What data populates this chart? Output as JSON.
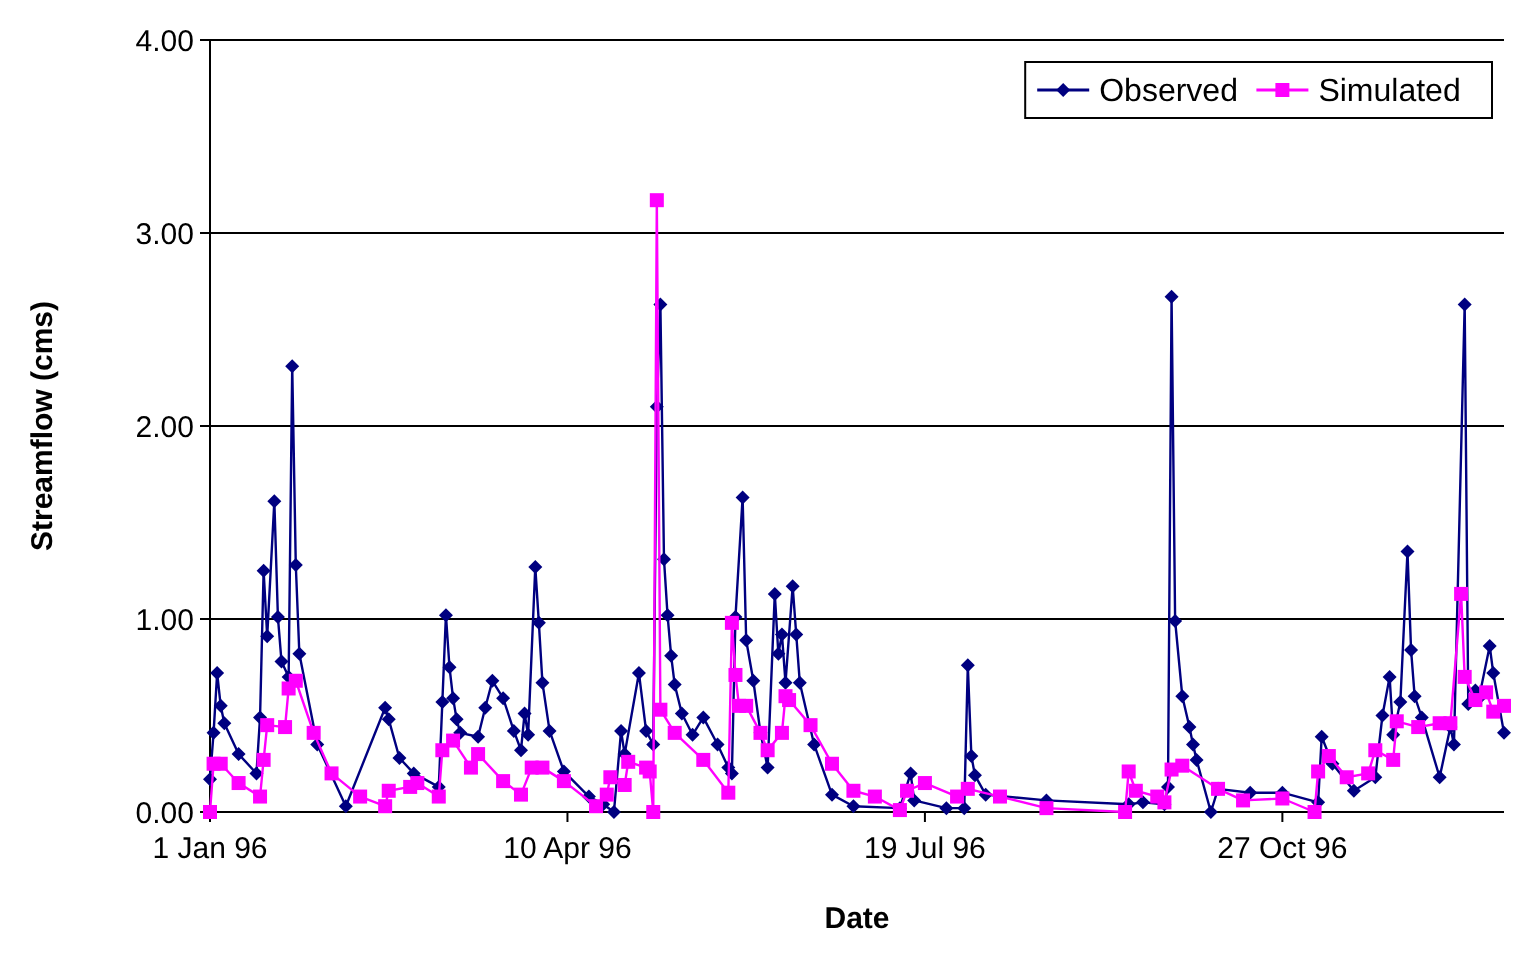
{
  "chart_data": {
    "type": "line",
    "xlabel": "Date",
    "ylabel": "Streamflow (cms)",
    "xlim": [
      "1996-01-01",
      "1996-12-28"
    ],
    "ylim": [
      0,
      4
    ],
    "xticks": [
      {
        "value": "1996-01-01",
        "label": "1 Jan 96"
      },
      {
        "value": "1996-04-10",
        "label": "10 Apr 96"
      },
      {
        "value": "1996-07-19",
        "label": "19 Jul 96"
      },
      {
        "value": "1996-10-27",
        "label": "27 Oct 96"
      }
    ],
    "yticks": [
      {
        "value": 0,
        "label": "0.00"
      },
      {
        "value": 1,
        "label": "1.00"
      },
      {
        "value": 2,
        "label": "2.00"
      },
      {
        "value": 3,
        "label": "3.00"
      },
      {
        "value": 4,
        "label": "4.00"
      }
    ],
    "grid": "y",
    "legend": "top right",
    "series": [
      {
        "name": "Observed",
        "color": "#000080",
        "marker": "diamond",
        "x": [
          "1996-01-01",
          "1996-01-02",
          "1996-01-03",
          "1996-01-04",
          "1996-01-05",
          "1996-01-09",
          "1996-01-14",
          "1996-01-15",
          "1996-01-16",
          "1996-01-17",
          "1996-01-19",
          "1996-01-20",
          "1996-01-21",
          "1996-01-23",
          "1996-01-24",
          "1996-01-25",
          "1996-01-26",
          "1996-01-31",
          "1996-02-08",
          "1996-02-19",
          "1996-02-20",
          "1996-02-23",
          "1996-02-27",
          "1996-03-05",
          "1996-03-06",
          "1996-03-07",
          "1996-03-08",
          "1996-03-09",
          "1996-03-10",
          "1996-03-11",
          "1996-03-16",
          "1996-03-18",
          "1996-03-20",
          "1996-03-23",
          "1996-03-26",
          "1996-03-28",
          "1996-03-29",
          "1996-03-30",
          "1996-04-01",
          "1996-04-02",
          "1996-04-03",
          "1996-04-05",
          "1996-04-09",
          "1996-04-16",
          "1996-04-20",
          "1996-04-21",
          "1996-04-23",
          "1996-04-25",
          "1996-04-26",
          "1996-04-30",
          "1996-05-02",
          "1996-05-04",
          "1996-05-05",
          "1996-05-06",
          "1996-05-07",
          "1996-05-08",
          "1996-05-09",
          "1996-05-10",
          "1996-05-12",
          "1996-05-15",
          "1996-05-18",
          "1996-05-22",
          "1996-05-25",
          "1996-05-26",
          "1996-05-27",
          "1996-05-29",
          "1996-05-30",
          "1996-06-01",
          "1996-06-03",
          "1996-06-05",
          "1996-06-07",
          "1996-06-08",
          "1996-06-09",
          "1996-06-10",
          "1996-06-12",
          "1996-06-13",
          "1996-06-14",
          "1996-06-18",
          "1996-06-23",
          "1996-06-29",
          "1996-07-12",
          "1996-07-15",
          "1996-07-16",
          "1996-07-25",
          "1996-07-30",
          "1996-07-31",
          "1996-08-01",
          "1996-08-02",
          "1996-08-05",
          "1996-08-22",
          "1996-09-14",
          "1996-09-18",
          "1996-09-24",
          "1996-09-25",
          "1996-09-26",
          "1996-09-27",
          "1996-09-29",
          "1996-10-01",
          "1996-10-02",
          "1996-10-03",
          "1996-10-07",
          "1996-10-09",
          "1996-10-18",
          "1996-10-27",
          "1996-11-06",
          "1996-11-07",
          "1996-11-10",
          "1996-11-16",
          "1996-11-22",
          "1996-11-24",
          "1996-11-26",
          "1996-11-27",
          "1996-11-29",
          "1996-12-01",
          "1996-12-02",
          "1996-12-03",
          "1996-12-05",
          "1996-12-10",
          "1996-12-13",
          "1996-12-14",
          "1996-12-17",
          "1996-12-18",
          "1996-12-20",
          "1996-12-21",
          "1996-12-24",
          "1996-12-25",
          "1996-12-28"
        ],
        "values": [
          0.17,
          0.41,
          0.72,
          0.55,
          0.46,
          0.3,
          0.2,
          0.49,
          1.25,
          0.91,
          1.61,
          1.01,
          0.78,
          0.7,
          2.31,
          1.28,
          0.82,
          0.35,
          0.03,
          0.54,
          0.48,
          0.28,
          0.2,
          0.13,
          0.57,
          1.02,
          0.75,
          0.59,
          0.48,
          0.41,
          0.39,
          0.54,
          0.68,
          0.59,
          0.42,
          0.32,
          0.51,
          0.4,
          1.27,
          0.98,
          0.67,
          0.42,
          0.21,
          0.08,
          0.04,
          null,
          0.0,
          0.42,
          0.3,
          0.72,
          0.42,
          0.35,
          2.1,
          2.63,
          1.31,
          1.02,
          0.81,
          0.66,
          0.51,
          0.4,
          0.49,
          0.35,
          0.23,
          0.2,
          1.01,
          1.63,
          0.89,
          0.68,
          0.41,
          0.23,
          1.13,
          0.82,
          0.92,
          0.67,
          1.17,
          0.92,
          0.67,
          0.35,
          0.09,
          0.03,
          0.02,
          0.2,
          0.06,
          0.02,
          0.02,
          0.76,
          0.29,
          0.19,
          0.09,
          0.06,
          0.04,
          0.05,
          0.04,
          0.13,
          2.67,
          0.99,
          0.6,
          0.44,
          0.35,
          0.27,
          0.0,
          0.12,
          0.1,
          0.1,
          0.05,
          0.39,
          0.25,
          0.11,
          0.18,
          0.5,
          0.7,
          0.4,
          0.57,
          1.35,
          0.84,
          0.6,
          0.49,
          0.18,
          0.44,
          0.35,
          2.63,
          0.56,
          0.63,
          0.59,
          0.86,
          0.72,
          0.41
        ]
      },
      {
        "name": "Simulated",
        "color": "#ff00ff",
        "marker": "square",
        "x": [
          "1996-01-01",
          "1996-01-02",
          "1996-01-04",
          "1996-01-09",
          "1996-01-15",
          "1996-01-16",
          "1996-01-17",
          "1996-01-22",
          "1996-01-23",
          "1996-01-25",
          "1996-01-30",
          "1996-02-04",
          "1996-02-12",
          "1996-02-19",
          "1996-02-20",
          "1996-02-26",
          "1996-02-28",
          "1996-03-05",
          "1996-03-06",
          "1996-03-09",
          "1996-03-14",
          "1996-03-16",
          "1996-03-23",
          "1996-03-28",
          "1996-03-31",
          "1996-04-03",
          "1996-04-09",
          "1996-04-18",
          "1996-04-21",
          "1996-04-22",
          "1996-04-26",
          "1996-04-27",
          "1996-05-02",
          "1996-05-03",
          "1996-05-04",
          "1996-05-05",
          "1996-05-06",
          "1996-05-10",
          "1996-05-18",
          "1996-05-25",
          "1996-05-26",
          "1996-05-27",
          "1996-05-28",
          "1996-05-30",
          "1996-06-03",
          "1996-06-05",
          "1996-06-09",
          "1996-06-10",
          "1996-06-11",
          "1996-06-17",
          "1996-06-23",
          "1996-06-29",
          "1996-07-05",
          "1996-07-12",
          "1996-07-14",
          "1996-07-19",
          "1996-07-28",
          "1996-07-31",
          "1996-08-09",
          "1996-08-22",
          "1996-09-13",
          "1996-09-14",
          "1996-09-16",
          "1996-09-22",
          "1996-09-24",
          "1996-09-26",
          "1996-09-29",
          "1996-10-09",
          "1996-10-16",
          "1996-10-27",
          "1996-11-05",
          "1996-11-06",
          "1996-11-09",
          "1996-11-14",
          "1996-11-20",
          "1996-11-22",
          "1996-11-27",
          "1996-11-28",
          "1996-12-04",
          "1996-12-10",
          "1996-12-13",
          "1996-12-16",
          "1996-12-17",
          "1996-12-20",
          "1996-12-23",
          "1996-12-25",
          "1996-12-28"
        ],
        "values": [
          0.0,
          0.25,
          0.25,
          0.15,
          0.08,
          0.27,
          0.45,
          0.44,
          0.64,
          0.68,
          0.41,
          0.2,
          0.08,
          0.03,
          0.11,
          0.13,
          0.15,
          0.08,
          0.32,
          0.37,
          0.23,
          0.3,
          0.16,
          0.09,
          0.23,
          0.23,
          0.16,
          0.03,
          0.09,
          0.18,
          0.14,
          0.26,
          0.23,
          0.21,
          0.0,
          3.17,
          0.53,
          0.41,
          0.27,
          0.1,
          0.98,
          0.71,
          0.55,
          0.55,
          0.41,
          0.32,
          0.41,
          0.6,
          0.58,
          0.45,
          0.25,
          0.11,
          0.08,
          0.01,
          0.11,
          0.15,
          0.08,
          0.12,
          0.08,
          0.02,
          0.0,
          0.21,
          0.11,
          0.08,
          0.05,
          0.22,
          0.24,
          0.12,
          0.06,
          0.07,
          0.0,
          0.21,
          0.29,
          0.18,
          0.2,
          0.32,
          0.27,
          0.47,
          0.44,
          0.46,
          0.46,
          1.13,
          0.7,
          0.58,
          0.62,
          0.52,
          0.55
        ]
      }
    ]
  }
}
